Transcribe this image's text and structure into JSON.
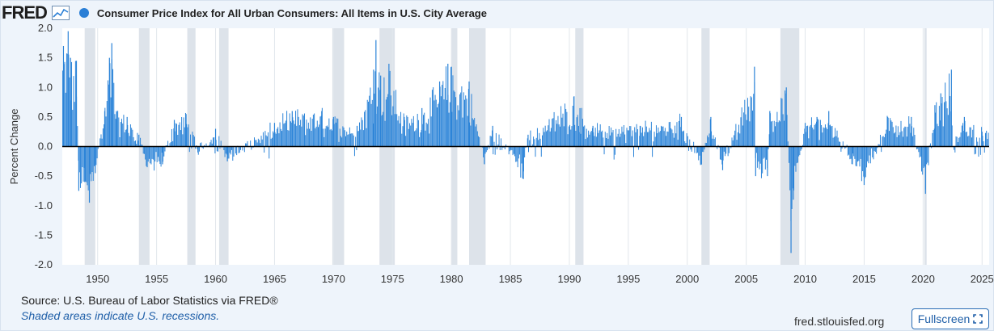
{
  "header": {
    "logo": "FRED",
    "series_title": "Consumer Price Index for All Urban Consumers: All Items in U.S. City Average"
  },
  "footer": {
    "source": "Source: U.S. Bureau of Labor Statistics via FRED®",
    "shaded_note": "Shaded areas indicate U.S. recessions.",
    "site": "fred.stlouisfed.org",
    "fullscreen_label": "Fullscreen"
  },
  "icons": {
    "graph": "line-graph-icon",
    "fullscreen": "fullscreen-icon"
  },
  "colors": {
    "series": "#2c84d8",
    "recession": "#dde3ea",
    "zero_line": "#000000",
    "legend": "#2a7fd6"
  },
  "chart_data": {
    "type": "bar",
    "title": "Consumer Price Index for All Urban Consumers: All Items in U.S. City Average",
    "ylabel": "Percent Change",
    "xlabel": "",
    "ylim": [
      -2.0,
      2.0
    ],
    "xlim": [
      1947.0,
      2025.6
    ],
    "y_ticks": [
      "2.0",
      "1.5",
      "1.0",
      "0.5",
      "0.0",
      "-0.5",
      "-1.0",
      "-1.5",
      "-2.0"
    ],
    "x_ticks": [
      "1950",
      "1955",
      "1960",
      "1965",
      "1970",
      "1975",
      "1980",
      "1985",
      "1990",
      "1995",
      "2000",
      "2005",
      "2010",
      "2015",
      "2020",
      "2025"
    ],
    "grid": "vertical",
    "recessions": [
      [
        1948.9,
        1949.8
      ],
      [
        1953.5,
        1954.4
      ],
      [
        1957.6,
        1958.3
      ],
      [
        1960.3,
        1961.1
      ],
      [
        1969.9,
        1970.9
      ],
      [
        1973.9,
        1975.2
      ],
      [
        1980.0,
        1980.5
      ],
      [
        1981.5,
        1982.9
      ],
      [
        1990.5,
        1991.2
      ],
      [
        2001.2,
        2001.9
      ],
      [
        2007.9,
        2009.5
      ],
      [
        2020.1,
        2020.3
      ]
    ],
    "anchor_points": [
      [
        1947.1,
        1.7
      ],
      [
        1947.5,
        1.95
      ],
      [
        1947.7,
        1.5
      ],
      [
        1948.2,
        1.45
      ],
      [
        1948.4,
        -0.75
      ],
      [
        1948.9,
        -0.6
      ],
      [
        1949.3,
        -0.95
      ],
      [
        1949.8,
        -0.45
      ],
      [
        1950.6,
        0.6
      ],
      [
        1951.0,
        1.5
      ],
      [
        1951.2,
        1.75
      ],
      [
        1951.6,
        0.6
      ],
      [
        1952.5,
        0.5
      ],
      [
        1953.5,
        0.2
      ],
      [
        1954.2,
        -0.35
      ],
      [
        1955.5,
        -0.3
      ],
      [
        1956.5,
        0.45
      ],
      [
        1957.5,
        0.55
      ],
      [
        1958.5,
        -0.1
      ],
      [
        1960.0,
        0.3
      ],
      [
        1961.0,
        -0.25
      ],
      [
        1965.0,
        0.4
      ],
      [
        1966.5,
        0.6
      ],
      [
        1969.0,
        0.6
      ],
      [
        1970.0,
        0.5
      ],
      [
        1972.0,
        0.35
      ],
      [
        1973.4,
        1.3
      ],
      [
        1973.6,
        1.8
      ],
      [
        1974.0,
        1.2
      ],
      [
        1974.7,
        1.4
      ],
      [
        1976.0,
        0.5
      ],
      [
        1977.5,
        0.65
      ],
      [
        1979.0,
        1.1
      ],
      [
        1979.7,
        1.4
      ],
      [
        1980.0,
        1.35
      ],
      [
        1981.5,
        1.1
      ],
      [
        1982.8,
        -0.3
      ],
      [
        1983.5,
        0.35
      ],
      [
        1986.1,
        -0.55
      ],
      [
        1986.5,
        0.2
      ],
      [
        1990.4,
        0.85
      ],
      [
        1990.9,
        0.65
      ],
      [
        1992.0,
        0.35
      ],
      [
        1996.0,
        0.35
      ],
      [
        1999.5,
        0.5
      ],
      [
        2001.2,
        -0.3
      ],
      [
        2002.0,
        0.5
      ],
      [
        2003.0,
        -0.4
      ],
      [
        2005.7,
        1.35
      ],
      [
        2005.8,
        -0.5
      ],
      [
        2006.8,
        -0.5
      ],
      [
        2007.0,
        0.6
      ],
      [
        2008.4,
        1.0
      ],
      [
        2008.8,
        -1.8
      ],
      [
        2009.0,
        -0.9
      ],
      [
        2010.0,
        0.4
      ],
      [
        2011.0,
        0.5
      ],
      [
        2012.0,
        0.6
      ],
      [
        2014.0,
        -0.3
      ],
      [
        2015.0,
        -0.65
      ],
      [
        2017.0,
        0.5
      ],
      [
        2019.0,
        0.5
      ],
      [
        2020.2,
        -0.8
      ],
      [
        2021.0,
        0.7
      ],
      [
        2021.5,
        0.9
      ],
      [
        2022.4,
        1.3
      ],
      [
        2022.5,
        0.0
      ],
      [
        2023.5,
        0.5
      ],
      [
        2025.0,
        0.25
      ]
    ]
  }
}
